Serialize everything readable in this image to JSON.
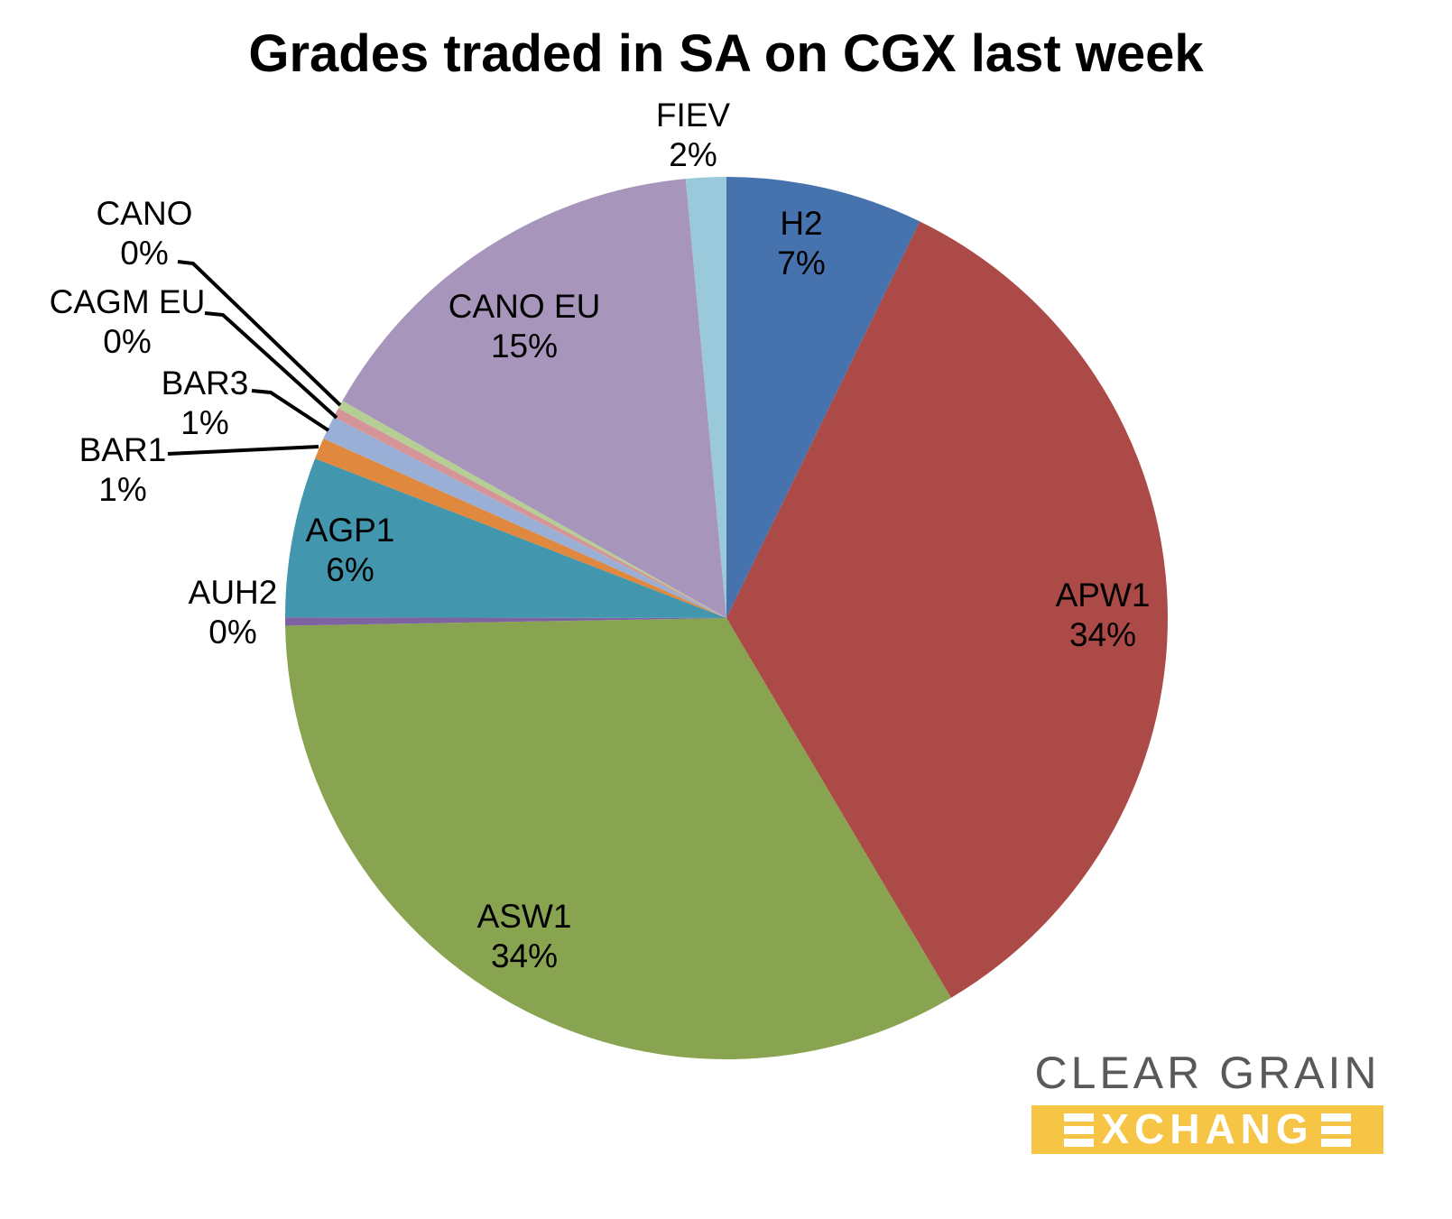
{
  "title": "Grades traded in SA on CGX last week",
  "chart_data": {
    "type": "pie",
    "title": "Grades traded in SA on CGX last week",
    "legend_position": "none",
    "data_labels": "category name and percentage; small slices labeled outside with black leader lines",
    "start_angle_deg": 0,
    "direction": "clockwise from 12 o'clock",
    "categories": [
      "H2",
      "APW1",
      "ASW1",
      "AUH2",
      "AGP1",
      "BAR1",
      "BAR3",
      "CAGM EU",
      "CANO",
      "CANO EU",
      "FIEV"
    ],
    "values_percent": [
      7,
      34,
      34,
      0,
      6,
      1,
      1,
      0,
      0,
      15,
      2
    ],
    "slices": [
      {
        "label": "H2",
        "pct_label": "7%",
        "percent": 7,
        "sweep_deg": 26.0,
        "color": "#4673AE"
      },
      {
        "label": "APW1",
        "pct_label": "34%",
        "percent": 34,
        "sweep_deg": 123.4,
        "color": "#AB4A46"
      },
      {
        "label": "ASW1",
        "pct_label": "34%",
        "percent": 34,
        "sweep_deg": 119.6,
        "color": "#89A451"
      },
      {
        "label": "AUH2",
        "pct_label": "0%",
        "percent": 0,
        "sweep_deg": 1.1,
        "color": "#7D63A1"
      },
      {
        "label": "AGP1",
        "pct_label": "6%",
        "percent": 6,
        "sweep_deg": 21.1,
        "color": "#4296AD"
      },
      {
        "label": "BAR1",
        "pct_label": "1%",
        "percent": 1,
        "sweep_deg": 2.8,
        "color": "#E0883D"
      },
      {
        "label": "BAR3",
        "pct_label": "1%",
        "percent": 1,
        "sweep_deg": 3.1,
        "color": "#99AFD6"
      },
      {
        "label": "CAGM EU",
        "pct_label": "0%",
        "percent": 0,
        "sweep_deg": 1.3,
        "color": "#D59497"
      },
      {
        "label": "CANO",
        "pct_label": "0%",
        "percent": 0,
        "sweep_deg": 1.1,
        "color": "#B5CE93"
      },
      {
        "label": "CANO EU",
        "pct_label": "15%",
        "percent": 15,
        "sweep_deg": 55.2,
        "color": "#A795BC"
      },
      {
        "label": "FIEV",
        "pct_label": "2%",
        "percent": 2,
        "sweep_deg": 5.3,
        "color": "#99C9DA"
      }
    ]
  },
  "logo": {
    "line1": "CLEAR GRAIN",
    "word": "EXCHANGE",
    "middle_letters": "XCHANG",
    "bar_color": "#F6C545",
    "text_color": "#58595B"
  }
}
